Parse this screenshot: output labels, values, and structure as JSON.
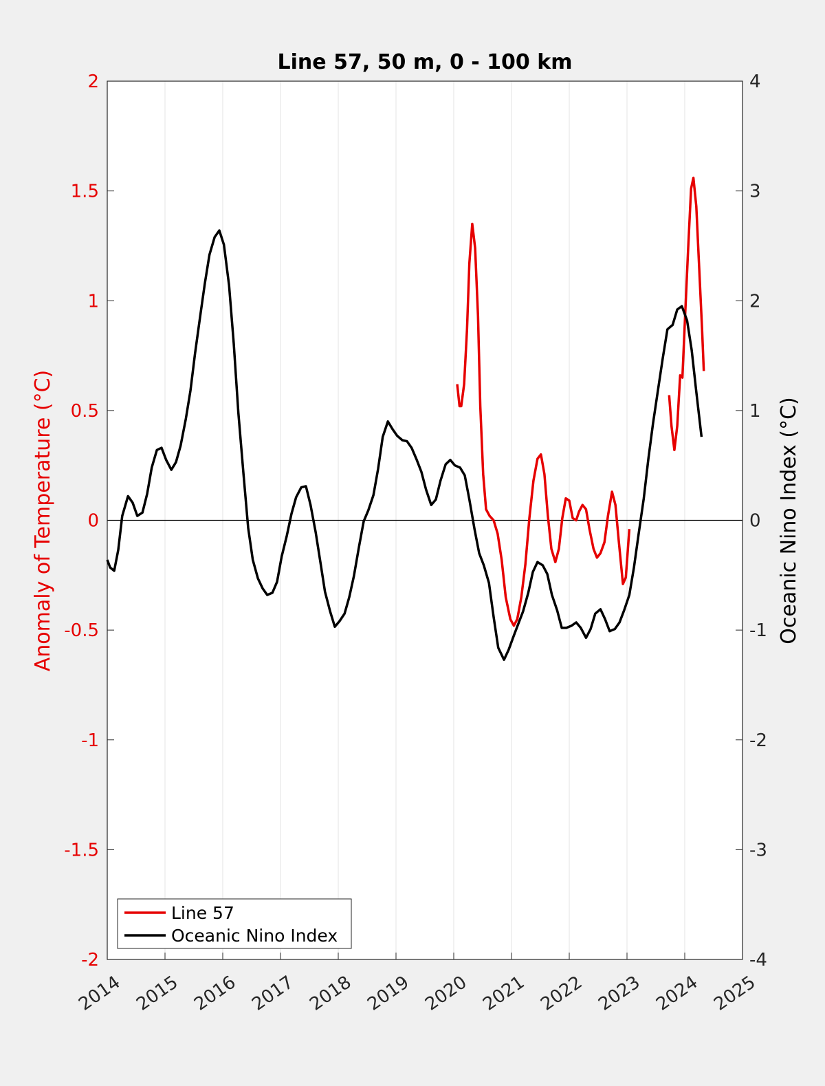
{
  "chart_data": {
    "type": "line",
    "title": "Line 57, 50 m, 0 - 100 km",
    "ylabel": "Anomaly of Temperature (°C)",
    "y2label": "Oceanic Nino Index (°C)",
    "xlim": [
      2014,
      2025
    ],
    "xticks": [
      2014,
      2015,
      2016,
      2017,
      2018,
      2019,
      2020,
      2021,
      2022,
      2023,
      2024,
      2025
    ],
    "ylim": [
      -2,
      2
    ],
    "yticks": [
      -2,
      -1.5,
      -1,
      -0.5,
      0,
      0.5,
      1,
      1.5,
      2
    ],
    "y2lim": [
      -4,
      4
    ],
    "y2ticks": [
      -4,
      -3,
      -2,
      -1,
      0,
      1,
      2,
      3,
      4
    ],
    "ycolor": "#e60000",
    "xgrid": true,
    "hline": 0,
    "legend": "southwest",
    "series": [
      {
        "name": "Line 57",
        "color": "#e60000",
        "x": [
          2020.06,
          2020.1,
          2020.13,
          2020.18,
          2020.23,
          2020.27,
          2020.32,
          2020.37,
          2020.42,
          2020.46,
          2020.51,
          2020.56,
          2020.62,
          2020.69,
          2020.76,
          2020.83,
          2020.9,
          2020.98,
          2021.04,
          2021.1,
          2021.17,
          2021.24,
          2021.31,
          2021.38,
          2021.45,
          2021.51,
          2021.57,
          2021.63,
          2021.69,
          2021.76,
          2021.82,
          2021.88,
          2021.94,
          2022.0,
          2022.06,
          2022.12,
          2022.17,
          2022.23,
          2022.29,
          2022.35,
          2022.42,
          2022.48,
          2022.54,
          2022.61,
          2022.67,
          2022.74,
          2022.8,
          2022.86,
          2022.93,
          2022.98,
          2023.04,
          null,
          2023.73,
          2023.77,
          2023.82,
          2023.87,
          2023.92,
          2023.96,
          2024.01,
          2024.06,
          2024.11,
          2024.15,
          2024.2,
          2024.25,
          2024.3,
          2024.33
        ],
        "values": [
          0.62,
          0.52,
          0.52,
          0.62,
          0.87,
          1.17,
          1.35,
          1.24,
          0.93,
          0.52,
          0.21,
          0.05,
          0.02,
          0.0,
          -0.06,
          -0.18,
          -0.35,
          -0.45,
          -0.48,
          -0.45,
          -0.35,
          -0.2,
          0.01,
          0.18,
          0.28,
          0.3,
          0.21,
          0.02,
          -0.13,
          -0.19,
          -0.13,
          0.01,
          0.1,
          0.09,
          0.01,
          0.0,
          0.04,
          0.07,
          0.05,
          -0.04,
          -0.13,
          -0.17,
          -0.15,
          -0.1,
          0.02,
          0.13,
          0.07,
          -0.1,
          -0.29,
          -0.26,
          -0.04,
          null,
          0.57,
          0.43,
          0.32,
          0.43,
          0.66,
          0.65,
          0.95,
          1.24,
          1.51,
          1.56,
          1.43,
          1.15,
          0.87,
          0.68
        ]
      },
      {
        "name": "Oceanic Nino Index",
        "color": "#000000",
        "axis": "y2",
        "x": [
          2014.0,
          2014.05,
          2014.12,
          2014.19,
          2014.26,
          2014.36,
          2014.44,
          2014.52,
          2014.61,
          2014.69,
          2014.77,
          2014.86,
          2014.94,
          2015.02,
          2015.11,
          2015.19,
          2015.27,
          2015.36,
          2015.44,
          2015.52,
          2015.61,
          2015.69,
          2015.77,
          2015.86,
          2015.94,
          2016.02,
          2016.11,
          2016.19,
          2016.27,
          2016.36,
          2016.44,
          2016.52,
          2016.61,
          2016.69,
          2016.77,
          2016.86,
          2016.94,
          2017.02,
          2017.11,
          2017.19,
          2017.27,
          2017.36,
          2017.44,
          2017.52,
          2017.61,
          2017.69,
          2017.77,
          2017.86,
          2017.94,
          2018.02,
          2018.11,
          2018.19,
          2018.27,
          2018.36,
          2018.44,
          2018.52,
          2018.61,
          2018.69,
          2018.77,
          2018.86,
          2018.94,
          2019.02,
          2019.11,
          2019.19,
          2019.27,
          2019.36,
          2019.44,
          2019.52,
          2019.61,
          2019.69,
          2019.77,
          2019.86,
          2019.94,
          2020.02,
          2020.11,
          2020.19,
          2020.27,
          2020.36,
          2020.44,
          2020.52,
          2020.61,
          2020.69,
          2020.77,
          2020.87,
          2020.95,
          2021.04,
          2021.12,
          2021.2,
          2021.29,
          2021.37,
          2021.45,
          2021.54,
          2021.62,
          2021.7,
          2021.79,
          2021.87,
          2021.95,
          2022.04,
          2022.12,
          2022.2,
          2022.29,
          2022.37,
          2022.45,
          2022.54,
          2022.62,
          2022.7,
          2022.79,
          2022.87,
          2022.95,
          2023.04,
          2023.12,
          2023.2,
          2023.29,
          2023.37,
          2023.45,
          2023.54,
          2023.62,
          2023.7,
          2023.79,
          2023.87,
          2023.95,
          2024.04,
          2024.12,
          2024.2,
          2024.29
        ],
        "values": [
          -0.36,
          -0.43,
          -0.46,
          -0.27,
          0.04,
          0.22,
          0.16,
          0.04,
          0.07,
          0.24,
          0.48,
          0.64,
          0.66,
          0.55,
          0.46,
          0.53,
          0.68,
          0.92,
          1.18,
          1.52,
          1.86,
          2.16,
          2.42,
          2.58,
          2.64,
          2.51,
          2.14,
          1.61,
          0.98,
          0.42,
          -0.07,
          -0.36,
          -0.53,
          -0.62,
          -0.68,
          -0.66,
          -0.56,
          -0.33,
          -0.14,
          0.06,
          0.21,
          0.3,
          0.31,
          0.14,
          -0.11,
          -0.38,
          -0.65,
          -0.83,
          -0.97,
          -0.92,
          -0.85,
          -0.7,
          -0.51,
          -0.24,
          -0.01,
          0.09,
          0.23,
          0.47,
          0.76,
          0.9,
          0.83,
          0.77,
          0.73,
          0.72,
          0.66,
          0.55,
          0.44,
          0.28,
          0.14,
          0.19,
          0.36,
          0.51,
          0.55,
          0.5,
          0.48,
          0.41,
          0.19,
          -0.08,
          -0.3,
          -0.41,
          -0.57,
          -0.88,
          -1.16,
          -1.27,
          -1.18,
          -1.05,
          -0.94,
          -0.83,
          -0.66,
          -0.47,
          -0.38,
          -0.41,
          -0.49,
          -0.68,
          -0.82,
          -0.98,
          -0.98,
          -0.96,
          -0.93,
          -0.98,
          -1.07,
          -0.99,
          -0.85,
          -0.81,
          -0.9,
          -1.01,
          -0.99,
          -0.93,
          -0.82,
          -0.68,
          -0.43,
          -0.13,
          0.2,
          0.56,
          0.88,
          1.2,
          1.48,
          1.74,
          1.78,
          1.92,
          1.95,
          1.82,
          1.55,
          1.17,
          0.76
        ]
      }
    ]
  }
}
